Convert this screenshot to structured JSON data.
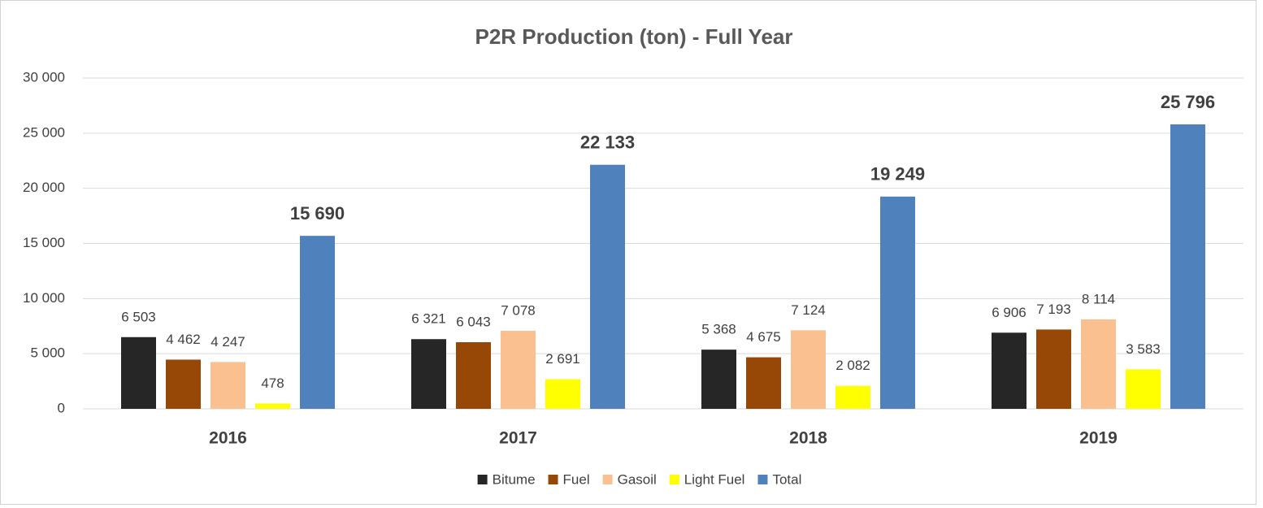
{
  "chart_data": {
    "type": "bar",
    "title": "P2R Production (ton) - Full Year",
    "categories": [
      "2016",
      "2017",
      "2018",
      "2019"
    ],
    "series": [
      {
        "name": "Bitume",
        "color": "#262626",
        "values": [
          6503,
          6321,
          5368,
          6906
        ],
        "value_labels": [
          "6 503",
          "6 321",
          "5 368",
          "6 906"
        ]
      },
      {
        "name": "Fuel",
        "color": "#974706",
        "values": [
          4462,
          6043,
          4675,
          7193
        ],
        "value_labels": [
          "4 462",
          "6 043",
          "4 675",
          "7 193"
        ]
      },
      {
        "name": "Gasoil",
        "color": "#fac090",
        "values": [
          4247,
          7078,
          7124,
          8114
        ],
        "value_labels": [
          "4 247",
          "7 078",
          "7 124",
          "8 114"
        ]
      },
      {
        "name": "Light Fuel",
        "color": "#ffff00",
        "values": [
          478,
          2691,
          2082,
          3583
        ],
        "value_labels": [
          "478",
          "2 691",
          "2 082",
          "3 583"
        ]
      },
      {
        "name": "Total",
        "color": "#4f81bd",
        "values": [
          15690,
          22133,
          19249,
          25796
        ],
        "value_labels": [
          "15 690",
          "22 133",
          "19 249",
          "25 796"
        ],
        "label_bold": true
      }
    ],
    "ylim": [
      0,
      30000
    ],
    "yticks": [
      0,
      {
        "value": 5000,
        "label": "5 000"
      },
      {
        "value": 10000,
        "label": "10 000"
      },
      {
        "value": 15000,
        "label": "15 000"
      },
      {
        "value": 20000,
        "label": "20 000"
      },
      {
        "value": 25000,
        "label": "25 000"
      },
      {
        "value": 30000,
        "label": "30 000"
      }
    ],
    "grid": true,
    "legend": "bottom"
  }
}
